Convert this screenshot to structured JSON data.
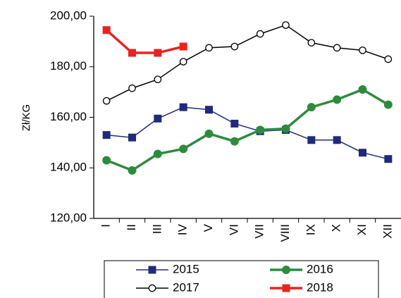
{
  "chart_data": {
    "type": "line",
    "y_label": "Zł/KG",
    "categories": [
      "I",
      "II",
      "III",
      "IV",
      "V",
      "VI",
      "VII",
      "VIII",
      "IX",
      "X",
      "XI",
      "XII"
    ],
    "series": [
      {
        "name": "2015",
        "color": "#1f2a7a",
        "marker": "square",
        "values": [
          153,
          152,
          159.5,
          164,
          163,
          157.5,
          154.5,
          155,
          151,
          151,
          146,
          143.5
        ]
      },
      {
        "name": "2016",
        "color": "#2e8b3e",
        "marker": "circle",
        "values": [
          143,
          139,
          145.5,
          147.5,
          153.5,
          150.5,
          155,
          155.5,
          164,
          167,
          171,
          165
        ]
      },
      {
        "name": "2017",
        "color": "#000000",
        "marker": "open-circle",
        "values": [
          166.5,
          171.5,
          175,
          182,
          187.5,
          188,
          193,
          196.5,
          189.5,
          187.5,
          186.5,
          183
        ]
      },
      {
        "name": "2018",
        "color": "#e8231f",
        "marker": "square",
        "values": [
          194.5,
          185.5,
          185.5,
          188,
          null,
          null,
          null,
          null,
          null,
          null,
          null,
          null
        ]
      }
    ],
    "ylim": [
      120,
      200
    ],
    "yticks": [
      {
        "value": 120,
        "label": "120,00"
      },
      {
        "value": 140,
        "label": "140,00"
      },
      {
        "value": 160,
        "label": "160,00"
      },
      {
        "value": 180,
        "label": "180,00"
      },
      {
        "value": 200,
        "label": "200,00"
      }
    ],
    "grid": false
  }
}
